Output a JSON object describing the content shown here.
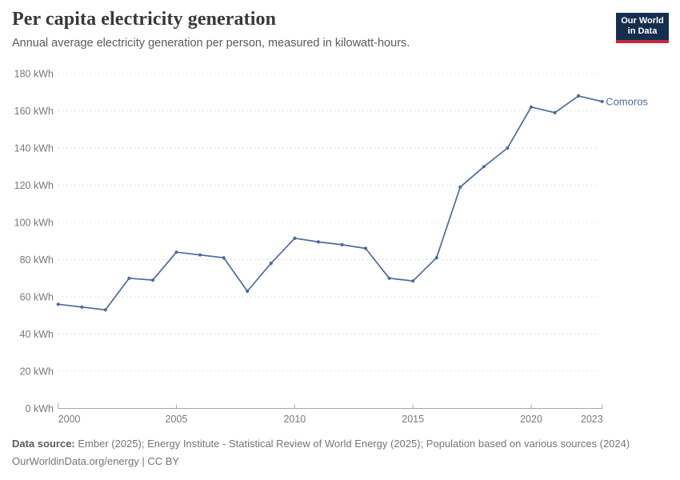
{
  "header": {
    "title": "Per capita electricity generation",
    "subtitle": "Annual average electricity generation per person, measured in kilowatt-hours."
  },
  "logo": {
    "line1": "Our World",
    "line2": "in Data",
    "bg_color": "#152e4d",
    "accent_color": "#c32a3c"
  },
  "chart_data": {
    "type": "line",
    "title": "Per capita electricity generation",
    "unit": "kWh",
    "x": [
      2000,
      2001,
      2002,
      2003,
      2004,
      2005,
      2006,
      2007,
      2008,
      2009,
      2010,
      2011,
      2012,
      2013,
      2014,
      2015,
      2016,
      2017,
      2018,
      2019,
      2020,
      2021,
      2022,
      2023
    ],
    "series": [
      {
        "name": "Comoros",
        "color": "#4c6a9e",
        "values": [
          56,
          54.5,
          53,
          70,
          69,
          84,
          82.5,
          81,
          63,
          78,
          91.5,
          89.5,
          88,
          86,
          70,
          68.5,
          81,
          119,
          130,
          140,
          162,
          159,
          168,
          165
        ]
      }
    ],
    "xticks": [
      2000,
      2005,
      2010,
      2015,
      2020,
      2023
    ],
    "yticks": [
      0,
      20,
      40,
      60,
      80,
      100,
      120,
      140,
      160,
      180
    ],
    "ytick_suffix": " kWh",
    "xlim": [
      2000,
      2023
    ],
    "ylim": [
      0,
      180
    ],
    "grid": "horizontal-dashed",
    "legend_position": "end-of-line"
  },
  "footer": {
    "source_label": "Data source:",
    "source_text": " Ember (2025); Energy Institute - Statistical Review of World Energy (2025); Population based on various sources (2024)",
    "license_line": "OurWorldinData.org/energy | CC BY"
  }
}
